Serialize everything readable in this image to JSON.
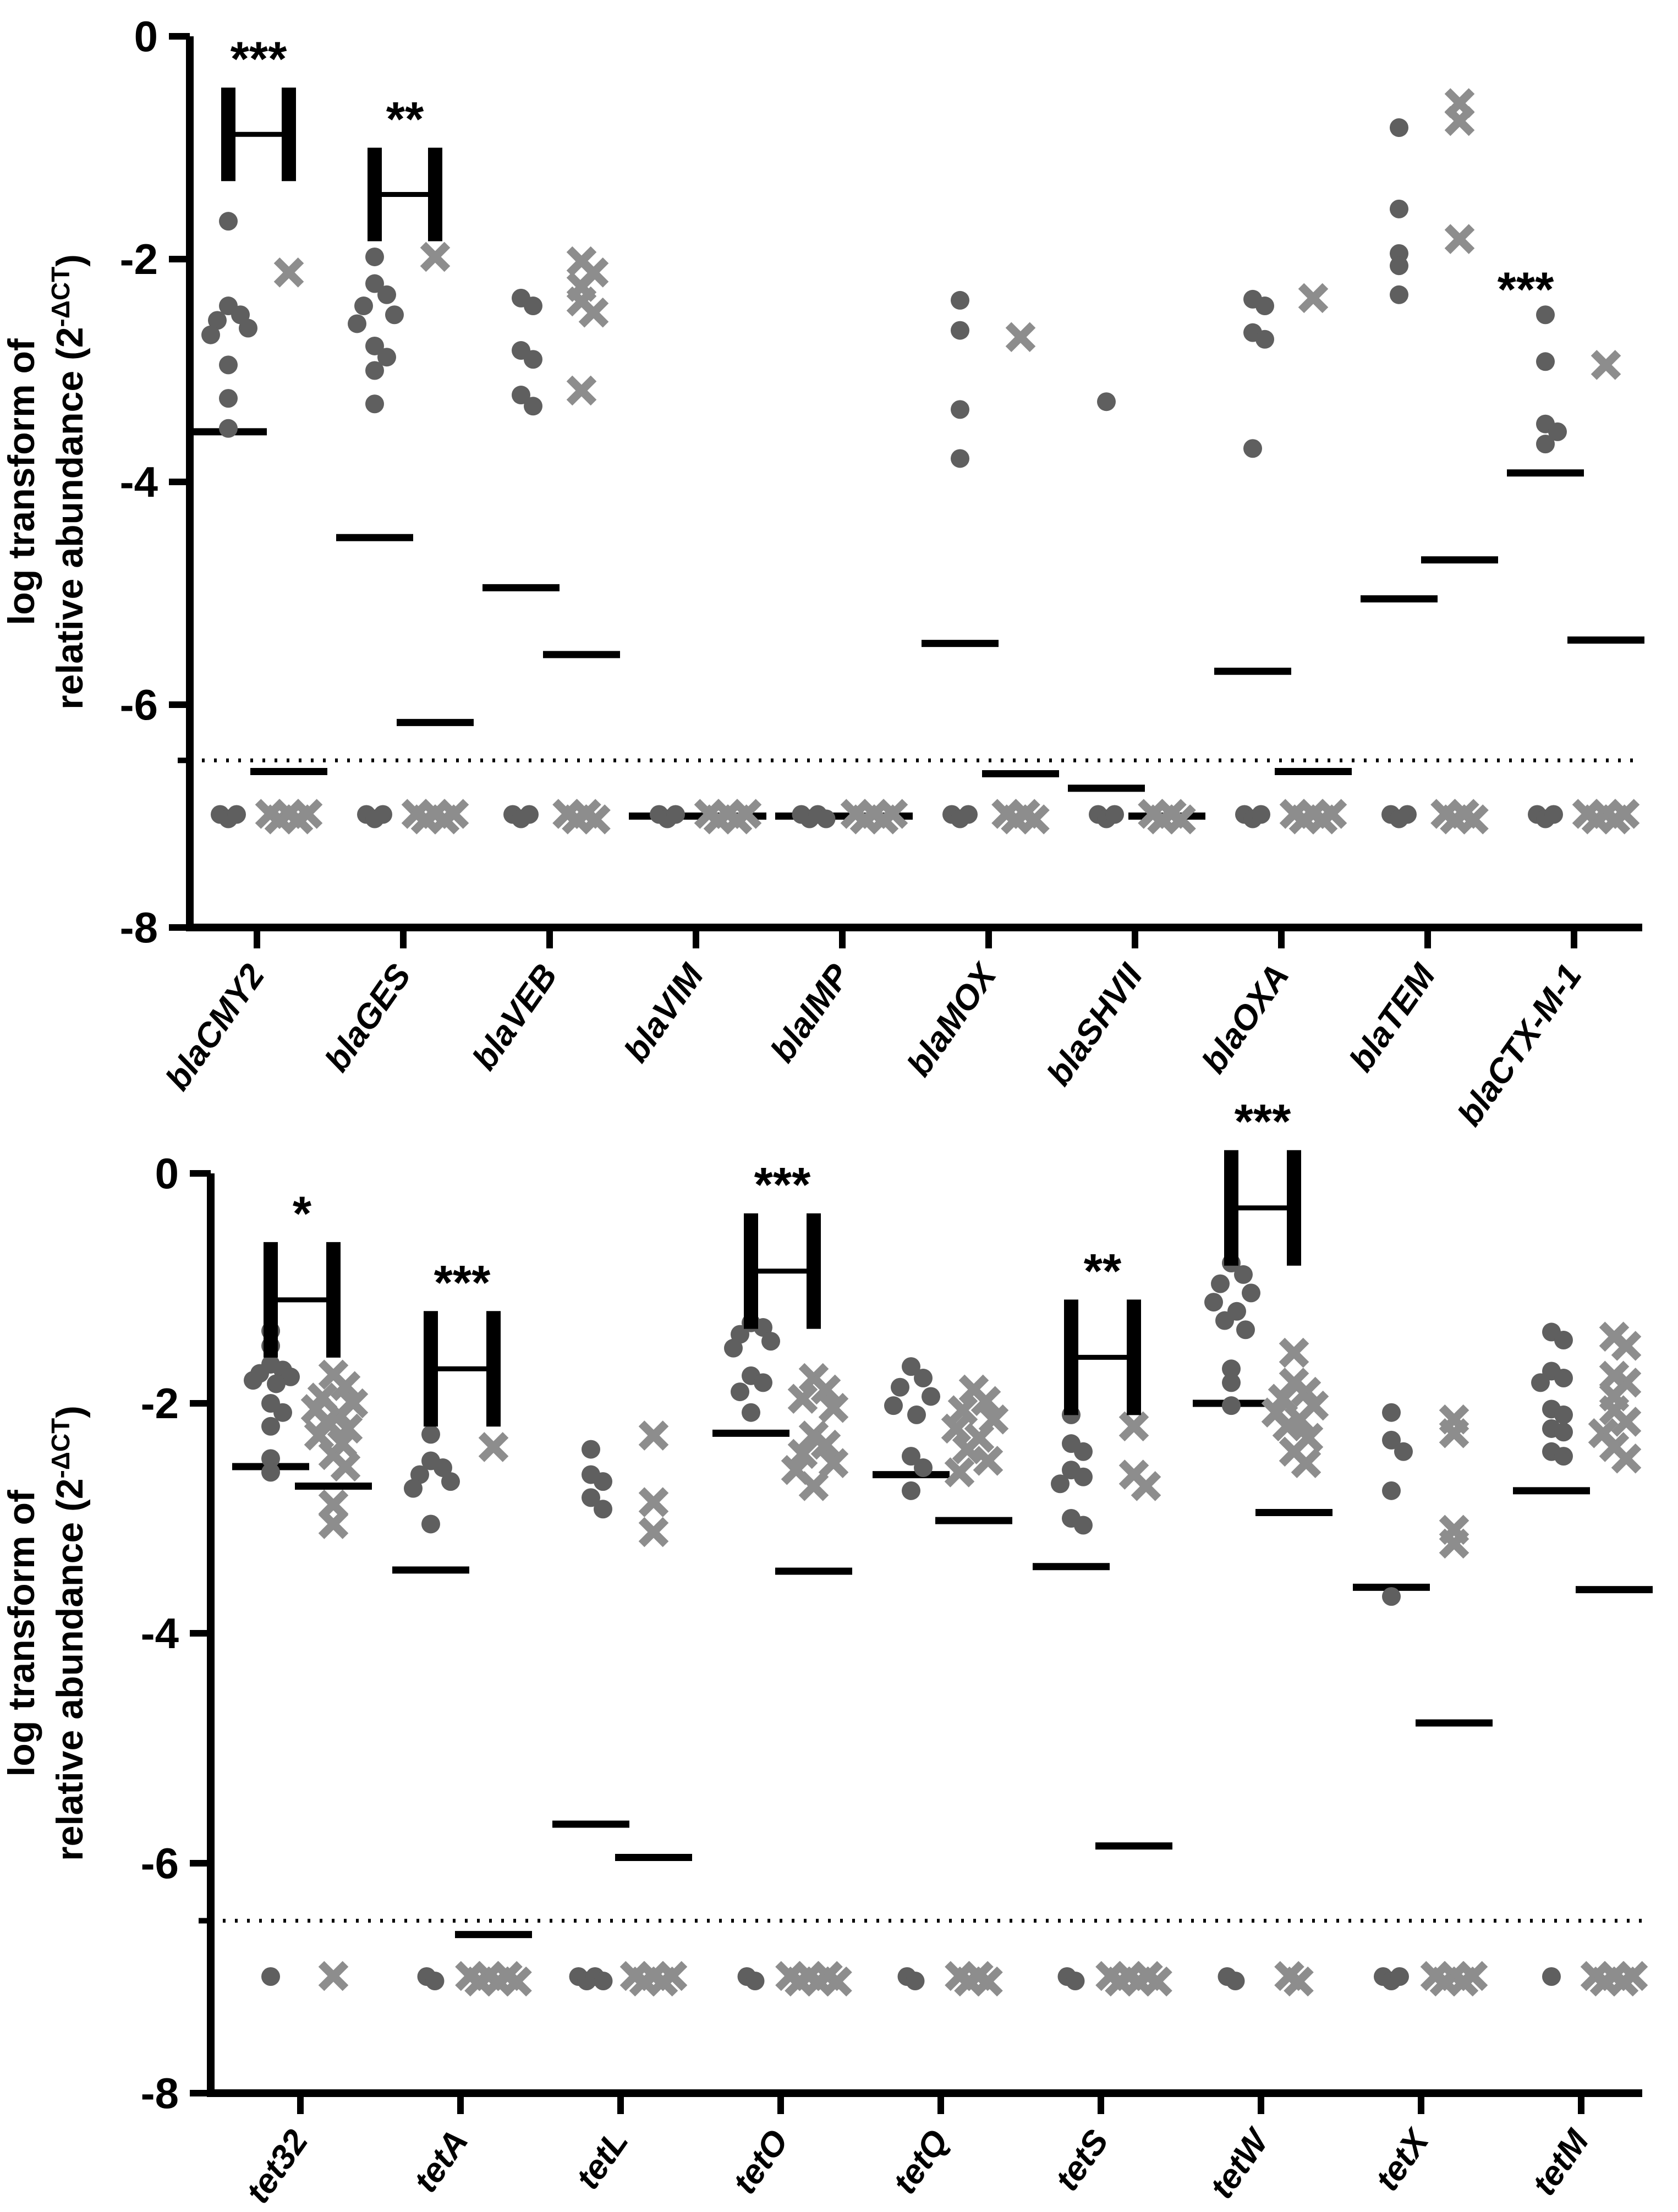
{
  "figure": {
    "description": "Two-panel dot plot of log-transformed relative abundance of beta-lactam (top) and tetracycline (bottom) resistance genes, circles vs crosses groups",
    "marker_legend": {
      "circle_series": "circle-marker",
      "cross_series": "x-marker"
    },
    "colors": {
      "circle": "#5f5f5f",
      "cross": "#8d8d8d",
      "axis": "#000000",
      "median_bar": "#000000",
      "detection_line": "#222222",
      "background": "#ffffff"
    }
  },
  "chart_data": [
    {
      "type": "scatter",
      "panel": "top",
      "title": "",
      "xlabel": "",
      "ylabel_line1": "log transform of",
      "ylabel_line2_prefix": "relative abundance (2",
      "ylabel_exponent": "-ΔCT",
      "ylabel_suffix": ")",
      "ylim": [
        -8,
        0
      ],
      "yticks": [
        "0",
        "-2",
        "-4",
        "-6",
        "-8"
      ],
      "ytick_values": [
        0,
        -2,
        -4,
        -6,
        -8
      ],
      "detection_line": -6.5,
      "floor_value": -7,
      "grid": false,
      "legend_position": "none",
      "categories": [
        "blaCMY2",
        "blaGES",
        "blaVEB",
        "blaVIM",
        "blaIMP",
        "blaMOX",
        "blaSHVII",
        "blaOXA",
        "blaTEM",
        "blaCTX-M-1"
      ],
      "groups": [
        {
          "label": "blaCMY2",
          "circles": [
            -1.66,
            -2.42,
            -2.5,
            -2.55,
            -2.62,
            -2.68,
            -2.95,
            -3.25,
            -3.52
          ],
          "xs": [
            -2.12
          ],
          "circle_median": -3.55,
          "x_median": -6.6,
          "floor_circles": 3,
          "floor_xs": 5,
          "annotation": {
            "stars": "***",
            "bracket": true,
            "y": -0.88
          }
        },
        {
          "label": "blaGES",
          "circles": [
            -1.98,
            -2.22,
            -2.32,
            -2.42,
            -2.5,
            -2.58,
            -2.78,
            -2.88,
            -3.0,
            -3.3
          ],
          "xs": [
            -1.98
          ],
          "circle_median": -4.5,
          "x_median": -6.16,
          "floor_circles": 3,
          "floor_xs": 5,
          "annotation": {
            "stars": "**",
            "bracket": true,
            "y": -1.42
          }
        },
        {
          "label": "blaVEB",
          "circles": [
            -2.35,
            -2.42,
            -2.82,
            -2.9,
            -3.22,
            -3.32
          ],
          "xs": [
            -2.02,
            -2.12,
            -2.25,
            -2.38,
            -2.48,
            -3.18
          ],
          "circle_median": -4.95,
          "x_median": -5.55,
          "floor_circles": 3,
          "floor_xs": 4
        },
        {
          "label": "blaVIM",
          "circles": [],
          "xs": [],
          "circle_median": -7.0,
          "x_median": -7.0,
          "floor_circles": 3,
          "floor_xs": 5
        },
        {
          "label": "blaIMP",
          "circles": [],
          "xs": [],
          "circle_median": -7.0,
          "x_median": -7.0,
          "floor_circles": 4,
          "floor_xs": 5
        },
        {
          "label": "blaMOX",
          "circles": [
            -2.37,
            -2.64,
            -3.35,
            -3.79
          ],
          "xs": [
            -2.7
          ],
          "circle_median": -5.45,
          "x_median": -6.62,
          "floor_circles": 3,
          "floor_xs": 4
        },
        {
          "label": "blaSHVII",
          "circles": [
            -3.28
          ],
          "xs": [],
          "circle_median": -6.75,
          "x_median": -7.0,
          "floor_circles": 3,
          "floor_xs": 4
        },
        {
          "label": "blaOXA",
          "circles": [
            -2.36,
            -2.42,
            -2.66,
            -2.72,
            -3.7
          ],
          "xs": [
            -2.35
          ],
          "circle_median": -5.7,
          "x_median": -6.6,
          "floor_circles": 3,
          "floor_xs": 5
        },
        {
          "label": "blaTEM",
          "circles": [
            -0.82,
            -1.55,
            -1.95,
            -2.06,
            -2.32
          ],
          "xs": [
            -0.6,
            -0.76,
            -1.82
          ],
          "circle_median": -5.05,
          "x_median": -4.7,
          "floor_circles": 3,
          "floor_xs": 4
        },
        {
          "label": "blaCTX-M-1",
          "circles": [
            -2.5,
            -2.92,
            -3.48,
            -3.55,
            -3.66
          ],
          "xs": [
            -2.95
          ],
          "circle_median": -3.92,
          "x_median": -5.42,
          "floor_circles": 3,
          "floor_xs": 5,
          "annotation": {
            "stars": "***",
            "bracket": false,
            "y": -2.42
          }
        }
      ]
    },
    {
      "type": "scatter",
      "panel": "bottom",
      "title": "",
      "xlabel": "",
      "ylabel_line1": "log transform of",
      "ylabel_line2_prefix": "relative abundance (2",
      "ylabel_exponent": "-ΔCT",
      "ylabel_suffix": ")",
      "ylim": [
        -8,
        0
      ],
      "yticks": [
        "0",
        "-2",
        "-4",
        "-6",
        "-8"
      ],
      "ytick_values": [
        0,
        -2,
        -4,
        -6,
        -8
      ],
      "detection_line": -6.5,
      "floor_value": -7,
      "grid": false,
      "legend_position": "none",
      "categories": [
        "tet32",
        "tetA",
        "tetL",
        "tetO",
        "tetQ",
        "tetS",
        "tetW",
        "tetX",
        "tetM"
      ],
      "groups": [
        {
          "label": "tet32",
          "circles": [
            -1.37,
            -1.5,
            -1.66,
            -1.71,
            -1.74,
            -1.77,
            -1.8,
            -1.83,
            -2.0,
            -2.08,
            -2.2,
            -2.48,
            -2.6
          ],
          "xs": [
            -1.75,
            -1.85,
            -1.95,
            -2.0,
            -2.05,
            -2.1,
            -2.16,
            -2.22,
            -2.28,
            -2.35,
            -2.45,
            -2.55,
            -2.88,
            -3.05
          ],
          "circle_median": -2.55,
          "x_median": -2.72,
          "floor_circles": 1,
          "floor_xs": 1,
          "annotation": {
            "stars": "*",
            "bracket": true,
            "y": -1.1
          }
        },
        {
          "label": "tetA",
          "circles": [
            -2.27,
            -2.5,
            -2.56,
            -2.62,
            -2.68,
            -2.74,
            -3.05
          ],
          "xs": [
            -2.38
          ],
          "circle_median": -3.45,
          "x_median": -6.62,
          "floor_circles": 2,
          "floor_xs": 6,
          "annotation": {
            "stars": "***",
            "bracket": true,
            "y": -1.7
          }
        },
        {
          "label": "tetL",
          "circles": [
            -2.4,
            -2.62,
            -2.68,
            -2.82,
            -2.92
          ],
          "xs": [
            -2.28,
            -2.86,
            -3.12
          ],
          "circle_median": -5.66,
          "x_median": -5.95,
          "floor_circles": 4,
          "floor_xs": 5
        },
        {
          "label": "tetO",
          "circles": [
            -1.3,
            -1.34,
            -1.4,
            -1.46,
            -1.52,
            -1.76,
            -1.82,
            -1.9,
            -2.08
          ],
          "xs": [
            -1.78,
            -1.88,
            -1.96,
            -2.04,
            -2.28,
            -2.36,
            -2.44,
            -2.52,
            -2.58,
            -2.72
          ],
          "circle_median": -2.26,
          "x_median": -3.46,
          "floor_circles": 2,
          "floor_xs": 6,
          "annotation": {
            "stars": "***",
            "bracket": true,
            "y": -0.85
          }
        },
        {
          "label": "tetQ",
          "circles": [
            -1.68,
            -1.78,
            -1.86,
            -1.94,
            -2.02,
            -2.1,
            -2.46,
            -2.56,
            -2.76
          ],
          "xs": [
            -1.88,
            -1.98,
            -2.06,
            -2.14,
            -2.22,
            -2.3,
            -2.4,
            -2.5,
            -2.6
          ],
          "circle_median": -2.62,
          "x_median": -3.02,
          "floor_circles": 2,
          "floor_xs": 4
        },
        {
          "label": "tetS",
          "circles": [
            -2.1,
            -2.35,
            -2.42,
            -2.58,
            -2.64,
            -2.7,
            -3.0,
            -3.06
          ],
          "xs": [
            -2.2,
            -2.62,
            -2.72
          ],
          "circle_median": -3.42,
          "x_median": -5.85,
          "floor_circles": 2,
          "floor_xs": 6,
          "annotation": {
            "stars": "**",
            "bracket": true,
            "y": -1.6
          }
        },
        {
          "label": "tetW",
          "circles": [
            -0.78,
            -0.88,
            -0.96,
            -1.04,
            -1.12,
            -1.2,
            -1.28,
            -1.36,
            -1.7,
            -1.82,
            -2.02
          ],
          "xs": [
            -1.56,
            -1.82,
            -1.9,
            -1.96,
            -2.02,
            -2.08,
            -2.14,
            -2.2,
            -2.3,
            -2.42,
            -2.52
          ],
          "circle_median": -2.0,
          "x_median": -2.95,
          "floor_circles": 2,
          "floor_xs": 2,
          "annotation": {
            "stars": "***",
            "bracket": true,
            "y": -0.3
          }
        },
        {
          "label": "tetX",
          "circles": [
            -2.08,
            -2.32,
            -2.42,
            -2.76,
            -3.68
          ],
          "xs": [
            -2.14,
            -2.26,
            -3.1,
            -3.22
          ],
          "circle_median": -3.6,
          "x_median": -4.78,
          "floor_circles": 3,
          "floor_xs": 5
        },
        {
          "label": "tetM",
          "circles": [
            -1.38,
            -1.45,
            -1.72,
            -1.78,
            -1.82,
            -2.05,
            -2.1,
            -2.22,
            -2.25,
            -2.42,
            -2.46
          ],
          "xs": [
            -1.42,
            -1.5,
            -1.76,
            -1.82,
            -1.94,
            -2.06,
            -2.16,
            -2.26,
            -2.38,
            -2.48
          ],
          "circle_median": -2.76,
          "x_median": -3.62,
          "floor_circles": 1,
          "floor_xs": 5
        }
      ]
    }
  ]
}
